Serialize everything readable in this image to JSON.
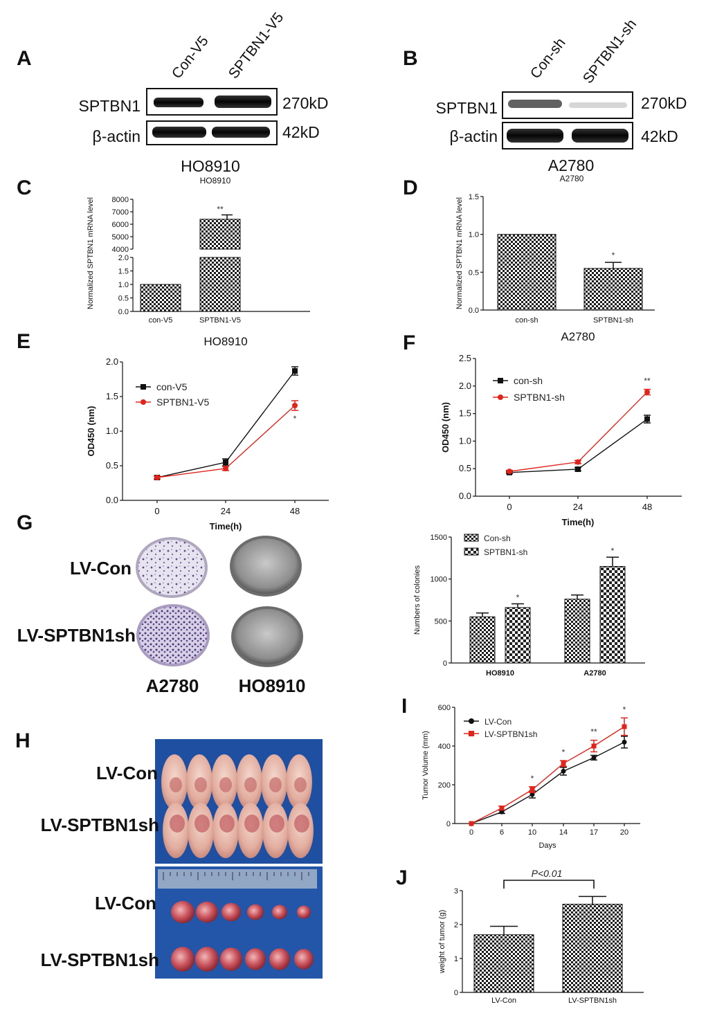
{
  "figure": {
    "panel_labels": [
      "A",
      "B",
      "C",
      "D",
      "E",
      "F",
      "G",
      "H",
      "I",
      "J"
    ]
  },
  "western_A": {
    "lanes": [
      "Con-V5",
      "SPTBN1-V5"
    ],
    "rows": [
      {
        "protein": "SPTBN1",
        "size": "270kD"
      },
      {
        "protein": "β-actin",
        "size": "42kD"
      }
    ],
    "cell_line": "HO8910"
  },
  "western_B": {
    "lanes": [
      "Con-sh",
      "SPTBN1-sh"
    ],
    "rows": [
      {
        "protein": "SPTBN1",
        "size": "270kD"
      },
      {
        "protein": "β-actin",
        "size": "42kD"
      }
    ],
    "cell_line": "A2780"
  },
  "panel_G": {
    "row_labels": [
      "LV-Con",
      "LV-SPTBN1sh"
    ],
    "col_labels": [
      "A2780",
      "HO8910"
    ]
  },
  "panel_H": {
    "mice_labels": [
      "LV-Con",
      "LV-SPTBN1sh"
    ],
    "tumor_labels": [
      "LV-Con",
      "LV-SPTBN1sh"
    ]
  },
  "chart_data": [
    {
      "id": "C",
      "type": "bar",
      "title": "HO8910",
      "categories": [
        "con-V5",
        "SPTBN1-V5"
      ],
      "values": [
        1.0,
        6400
      ],
      "errors": [
        0.03,
        350
      ],
      "significance": [
        "",
        "**"
      ],
      "ylabel": "Normalized SPTBN1 mRNA level",
      "axis_break": {
        "lower": [
          0,
          2.0
        ],
        "upper": [
          4000,
          8000
        ]
      },
      "yticks_lower": [
        "0.0",
        "0.5",
        "1.0",
        "1.5",
        "2.0"
      ],
      "yticks_upper": [
        "4000",
        "5000",
        "6000",
        "7000",
        "8000"
      ]
    },
    {
      "id": "D",
      "type": "bar",
      "title": "A2780",
      "categories": [
        "con-sh",
        "SPTBN1-sh"
      ],
      "values": [
        1.0,
        0.55
      ],
      "errors": [
        0,
        0.08
      ],
      "significance": [
        "",
        "*"
      ],
      "ylabel": "Normalized SPTBN1 mRNA level",
      "ylim": [
        0,
        1.5
      ],
      "yticks": [
        "0.0",
        "0.5",
        "1.0",
        "1.5"
      ]
    },
    {
      "id": "E",
      "type": "line",
      "title": "HO8910",
      "x": [
        0,
        24,
        48
      ],
      "xticks": [
        "0",
        "24",
        "48"
      ],
      "xlabel": "Time(h)",
      "ylabel": "OD450 (nm)",
      "ylim": [
        0,
        2.0
      ],
      "yticks": [
        "0.0",
        "0.5",
        "1.0",
        "1.5",
        "2.0"
      ],
      "series": [
        {
          "name": "con-V5",
          "color": "#111111",
          "marker": "square",
          "values": [
            0.33,
            0.55,
            1.87
          ],
          "errors": [
            0.02,
            0.05,
            0.06
          ]
        },
        {
          "name": "SPTBN1-V5",
          "color": "#e0241b",
          "marker": "circle",
          "values": [
            0.33,
            0.46,
            1.37
          ],
          "errors": [
            0.02,
            0.03,
            0.07
          ]
        }
      ],
      "annotations": [
        {
          "x": 48,
          "text": "*"
        }
      ],
      "legend": "top-left"
    },
    {
      "id": "F",
      "type": "line",
      "title": "A2780",
      "x": [
        0,
        24,
        48
      ],
      "xticks": [
        "0",
        "24",
        "48"
      ],
      "xlabel": "Time(h)",
      "ylabel": "OD450 (nm)",
      "ylim": [
        0,
        2.5
      ],
      "yticks": [
        "0.0",
        "0.5",
        "1.0",
        "1.5",
        "2.0",
        "2.5"
      ],
      "series": [
        {
          "name": "con-sh",
          "color": "#111111",
          "marker": "square",
          "values": [
            0.43,
            0.49,
            1.4
          ],
          "errors": [
            0.02,
            0.03,
            0.07
          ]
        },
        {
          "name": "SPTBN1-sh",
          "color": "#e0241b",
          "marker": "circle",
          "values": [
            0.45,
            0.62,
            1.89
          ],
          "errors": [
            0.02,
            0.03,
            0.05
          ]
        }
      ],
      "annotations": [
        {
          "x": 48,
          "text": "**"
        }
      ],
      "legend": "top-left"
    },
    {
      "id": "G_chart",
      "type": "bar",
      "categories": [
        "HO8910",
        "A2780"
      ],
      "series": [
        {
          "name": "Con-sh",
          "values": [
            550,
            760
          ],
          "errors": [
            45,
            50
          ]
        },
        {
          "name": "SPTBN1-sh",
          "values": [
            660,
            1150
          ],
          "errors": [
            45,
            110
          ]
        }
      ],
      "significance": [
        "*",
        "*"
      ],
      "ylabel": "Numbers of colonies",
      "ylim": [
        0,
        1500
      ],
      "yticks": [
        "0",
        "500",
        "1000",
        "1500"
      ],
      "legend": "top-left"
    },
    {
      "id": "I",
      "type": "line",
      "x": [
        0,
        6,
        10,
        14,
        17,
        20
      ],
      "xticks": [
        "0",
        "6",
        "10",
        "14",
        "17",
        "20"
      ],
      "xlabel": "Days",
      "ylabel": "Tumor Volume (mm)",
      "ylim": [
        0,
        600
      ],
      "yticks": [
        "0",
        "200",
        "400",
        "600"
      ],
      "series": [
        {
          "name": "LV-Con",
          "color": "#111111",
          "marker": "circle",
          "values": [
            0,
            60,
            150,
            270,
            340,
            420
          ],
          "errors": [
            0,
            8,
            18,
            20,
            12,
            30
          ]
        },
        {
          "name": "LV-SPTBN1sh",
          "color": "#e0241b",
          "marker": "square",
          "values": [
            0,
            80,
            175,
            310,
            400,
            500
          ],
          "errors": [
            0,
            10,
            15,
            15,
            30,
            45
          ]
        }
      ],
      "annotations": [
        {
          "x": 10,
          "text": "*"
        },
        {
          "x": 14,
          "text": "*"
        },
        {
          "x": 17,
          "text": "**"
        },
        {
          "x": 20,
          "text": "*"
        }
      ],
      "legend": "top-left"
    },
    {
      "id": "J",
      "type": "bar",
      "categories": [
        "LV-Con",
        "LV-SPTBN1sh"
      ],
      "values": [
        1.7,
        2.6
      ],
      "errors": [
        0.25,
        0.23
      ],
      "ylabel": "weight of tumor (g)",
      "ylim": [
        0,
        3
      ],
      "yticks": [
        "0",
        "1",
        "2",
        "3"
      ],
      "bracket_text": "P<0.01"
    }
  ]
}
